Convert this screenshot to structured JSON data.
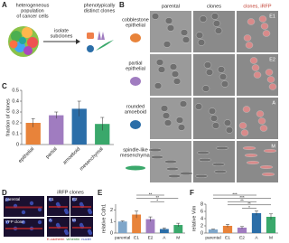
{
  "panels": [
    "A",
    "B",
    "C",
    "D",
    "E",
    "F"
  ],
  "panel_a": {
    "population": [
      "heterogeneous",
      "population",
      "of cancer cells"
    ],
    "arrow": [
      "isolate",
      "subclones"
    ],
    "clones": [
      "phenotypically",
      "distinct clones"
    ]
  },
  "panel_b": {
    "columns": [
      "parental",
      "clones",
      "clones, iRFP"
    ],
    "rows": [
      {
        "label": [
          "cobblestone",
          "epithelial"
        ],
        "clone": "E1"
      },
      {
        "label": [
          "partial",
          "epithelial"
        ],
        "clone": "E2"
      },
      {
        "label": [
          "rounded",
          "amoeboid"
        ],
        "clone": "A"
      },
      {
        "label": [
          "spindle-like",
          "mesenchymal"
        ],
        "clone": "M"
      }
    ]
  },
  "panel_d": {
    "parental": "parental",
    "irfp": "iRFP clones",
    "yfp": "YFP clone",
    "clones": [
      "E1",
      "E2",
      "A",
      "M"
    ],
    "legend": [
      "E-cadherin",
      "vimentin",
      "nuclei"
    ]
  },
  "chart_data": [
    {
      "type": "bar",
      "ylabel": "fraction of clones",
      "categories": [
        "epithelial",
        "partial",
        "amoeboid",
        "mesenchymal"
      ],
      "values": [
        0.2,
        0.27,
        0.33,
        0.19
      ],
      "errors": [
        0.04,
        0.03,
        0.07,
        0.06
      ],
      "colors": [
        "#e8833a",
        "#a07cc0",
        "#2b6ea8",
        "#3aa86b"
      ],
      "ylim": [
        0,
        0.5
      ],
      "yticks": [
        0,
        0.1,
        0.2,
        0.3,
        0.4,
        0.5
      ]
    },
    {
      "type": "bar",
      "ylabel": "relative Cdh1",
      "categories": [
        "parental",
        "E1",
        "E2",
        "A",
        "M"
      ],
      "values": [
        1.0,
        1.6,
        1.2,
        0.35,
        0.7
      ],
      "errors": [
        0.05,
        0.3,
        0.2,
        0.1,
        0.15
      ],
      "colors": [
        "#7fa6c9",
        "#e8833a",
        "#a07cc0",
        "#2b6ea8",
        "#3aa86b"
      ],
      "ylim": [
        0,
        2.5
      ],
      "yticks": [
        0,
        1,
        2
      ],
      "significance": [
        {
          "label": "**",
          "between": [
            "E1",
            "A"
          ]
        },
        {
          "label": "**",
          "between": [
            "E1",
            "M"
          ]
        },
        {
          "label": "*",
          "between": [
            "E2",
            "A"
          ]
        }
      ]
    },
    {
      "type": "bar",
      "ylabel": "relative Vim",
      "categories": [
        "parental",
        "E1",
        "E2",
        "A",
        "M"
      ],
      "values": [
        1.0,
        2.0,
        1.5,
        5.5,
        4.5
      ],
      "errors": [
        0.1,
        0.4,
        0.3,
        0.6,
        0.8
      ],
      "colors": [
        "#7fa6c9",
        "#e8833a",
        "#a07cc0",
        "#2b6ea8",
        "#3aa86b"
      ],
      "ylim": [
        0,
        8
      ],
      "yticks": [
        0,
        2,
        4,
        6,
        8
      ],
      "significance": [
        {
          "label": "***",
          "between": [
            "parental",
            "A"
          ]
        },
        {
          "label": "***",
          "between": [
            "parental",
            "M"
          ]
        },
        {
          "label": "**",
          "between": [
            "E1",
            "A"
          ]
        },
        {
          "label": "**",
          "between": [
            "E1",
            "M"
          ]
        },
        {
          "label": "*",
          "between": [
            "E2",
            "A"
          ]
        }
      ]
    }
  ]
}
